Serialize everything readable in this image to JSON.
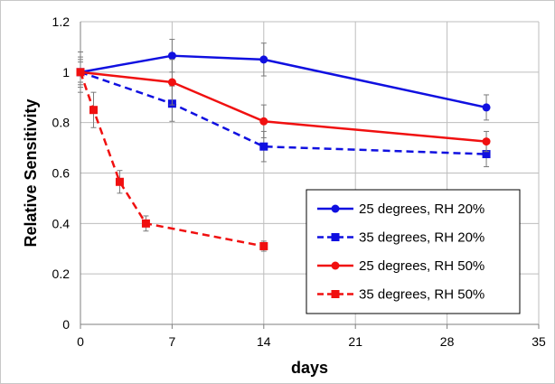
{
  "chart_data": {
    "type": "line",
    "title": "",
    "xlabel": "days",
    "ylabel": "Relative Sensitivity",
    "xlim": [
      0,
      35
    ],
    "ylim": [
      0,
      1.2
    ],
    "x_ticks": [
      "0",
      "7",
      "14",
      "21",
      "28",
      "35"
    ],
    "y_ticks": [
      "0",
      "0.2",
      "0.4",
      "0.6",
      "0.8",
      "1",
      "1.2"
    ],
    "grid": true,
    "legend_position": "right",
    "series": [
      {
        "name": "25 degrees, RH 20%",
        "color": "#1010e0",
        "line_style": "solid",
        "marker": "circle",
        "points": [
          {
            "x": 0,
            "y": 1.0,
            "err": 0.08
          },
          {
            "x": 7,
            "y": 1.065,
            "err": 0.065
          },
          {
            "x": 14,
            "y": 1.05,
            "err": 0.065
          },
          {
            "x": 31,
            "y": 0.86,
            "err": 0.05
          }
        ]
      },
      {
        "name": "35 degrees, RH 20%",
        "color": "#1010e0",
        "line_style": "dashed",
        "marker": "square",
        "points": [
          {
            "x": 0,
            "y": 1.0,
            "err": 0.06
          },
          {
            "x": 7,
            "y": 0.875,
            "err": 0.07
          },
          {
            "x": 14,
            "y": 0.705,
            "err": 0.06
          },
          {
            "x": 31,
            "y": 0.675,
            "err": 0.05
          }
        ]
      },
      {
        "name": "25 degrees, RH 50%",
        "color": "#f01010",
        "line_style": "solid",
        "marker": "circle",
        "points": [
          {
            "x": 0,
            "y": 1.0,
            "err": 0.05
          },
          {
            "x": 7,
            "y": 0.96,
            "err": 0.09
          },
          {
            "x": 14,
            "y": 0.805,
            "err": 0.065
          },
          {
            "x": 31,
            "y": 0.725,
            "err": 0.04
          }
        ]
      },
      {
        "name": "35 degrees, RH 50%",
        "color": "#f01010",
        "line_style": "dashed",
        "marker": "square",
        "points": [
          {
            "x": 0,
            "y": 1.0,
            "err": 0.04
          },
          {
            "x": 1,
            "y": 0.85,
            "err": 0.07
          },
          {
            "x": 3,
            "y": 0.565,
            "err": 0.045
          },
          {
            "x": 5,
            "y": 0.4,
            "err": 0.03
          },
          {
            "x": 14,
            "y": 0.31,
            "err": 0.02
          }
        ]
      }
    ]
  }
}
